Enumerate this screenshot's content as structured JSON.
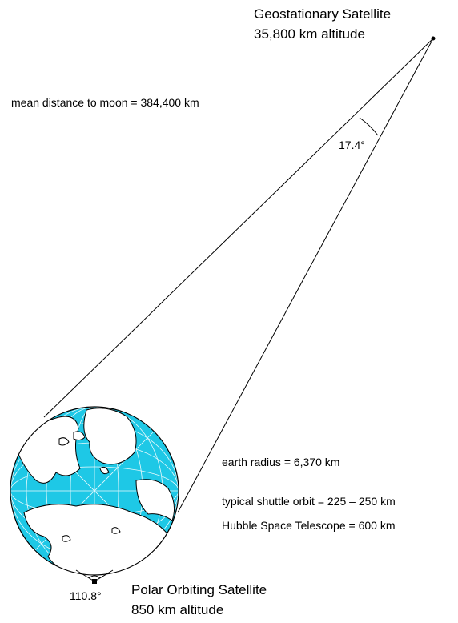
{
  "geostationary": {
    "title": "Geostationary Satellite",
    "altitude": "35,800  km altitude",
    "angle": "17.4°"
  },
  "polar": {
    "title": "Polar Orbiting Satellite",
    "altitude": "850  km altitude",
    "angle": "110.8°"
  },
  "notes": {
    "moon_distance": "mean distance to moon = 384,400 km",
    "earth_radius": "earth radius = 6,370 km",
    "shuttle_orbit": "typical shuttle orbit = 225 – 250 km",
    "hubble": "Hubble Space Telescope = 600 km"
  },
  "colors": {
    "ocean": "#1ec8e6",
    "land": "#ffffff",
    "line": "#000000"
  }
}
